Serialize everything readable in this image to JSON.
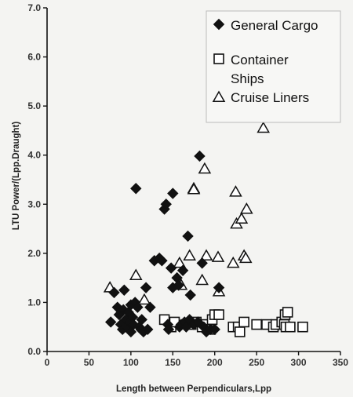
{
  "chart_data": {
    "type": "scatter",
    "xlabel": "Length between Perpendiculars,Lpp",
    "ylabel": "LTU Power/(Lpp.Draught)",
    "xlim": [
      0,
      350
    ],
    "ylim": [
      0,
      7
    ],
    "x_ticks": [
      "0",
      "50",
      "100",
      "150",
      "200",
      "250",
      "300",
      "350"
    ],
    "y_ticks": [
      "0.0",
      "1.0",
      "2.0",
      "3.0",
      "4.0",
      "5.0",
      "6.0",
      "7.0"
    ],
    "grid": false,
    "legend_position": "top-right",
    "legend": [
      {
        "label": "General Cargo",
        "marker": "diamond-filled"
      },
      {
        "label": "Container Ships",
        "label_lines": [
          "Container",
          "Ships"
        ],
        "marker": "square-open"
      },
      {
        "label": "Cruise Liners",
        "marker": "triangle-open"
      }
    ],
    "series": [
      {
        "name": "General Cargo",
        "marker": "diamond-filled",
        "points": [
          [
            76,
            0.6
          ],
          [
            80,
            1.2
          ],
          [
            84,
            0.9
          ],
          [
            86,
            0.75
          ],
          [
            88,
            0.55
          ],
          [
            90,
            0.45
          ],
          [
            91,
            0.85
          ],
          [
            92,
            1.25
          ],
          [
            94,
            0.65
          ],
          [
            95,
            0.5
          ],
          [
            97,
            0.8
          ],
          [
            98,
            0.6
          ],
          [
            100,
            0.95
          ],
          [
            100,
            0.4
          ],
          [
            102,
            0.7
          ],
          [
            103,
            0.55
          ],
          [
            105,
            1.0
          ],
          [
            106,
            3.32
          ],
          [
            108,
            0.9
          ],
          [
            110,
            0.5
          ],
          [
            112,
            0.45
          ],
          [
            113,
            0.65
          ],
          [
            115,
            0.4
          ],
          [
            118,
            1.3
          ],
          [
            120,
            0.45
          ],
          [
            123,
            0.9
          ],
          [
            128,
            1.85
          ],
          [
            134,
            1.9
          ],
          [
            137,
            1.85
          ],
          [
            140,
            2.9
          ],
          [
            142,
            3.0
          ],
          [
            144,
            0.55
          ],
          [
            145,
            0.45
          ],
          [
            148,
            1.7
          ],
          [
            150,
            3.22
          ],
          [
            150,
            1.3
          ],
          [
            155,
            1.5
          ],
          [
            157,
            1.35
          ],
          [
            158,
            0.5
          ],
          [
            160,
            0.55
          ],
          [
            162,
            1.65
          ],
          [
            164,
            0.6
          ],
          [
            166,
            0.5
          ],
          [
            168,
            2.35
          ],
          [
            170,
            0.65
          ],
          [
            171,
            1.15
          ],
          [
            175,
            0.55
          ],
          [
            180,
            0.6
          ],
          [
            182,
            3.98
          ],
          [
            185,
            1.8
          ],
          [
            187,
            0.5
          ],
          [
            190,
            0.4
          ],
          [
            195,
            0.45
          ],
          [
            200,
            0.45
          ],
          [
            205,
            1.3
          ]
        ]
      },
      {
        "name": "Container Ships",
        "marker": "square-open",
        "points": [
          [
            140,
            0.65
          ],
          [
            148,
            0.5
          ],
          [
            152,
            0.6
          ],
          [
            172,
            0.55
          ],
          [
            178,
            0.6
          ],
          [
            185,
            0.5
          ],
          [
            190,
            0.55
          ],
          [
            195,
            0.45
          ],
          [
            197,
            0.65
          ],
          [
            200,
            0.75
          ],
          [
            205,
            0.75
          ],
          [
            222,
            0.5
          ],
          [
            228,
            0.5
          ],
          [
            230,
            0.4
          ],
          [
            235,
            0.6
          ],
          [
            250,
            0.55
          ],
          [
            262,
            0.55
          ],
          [
            270,
            0.5
          ],
          [
            273,
            0.55
          ],
          [
            280,
            0.6
          ],
          [
            283,
            0.55
          ],
          [
            284,
            0.75
          ],
          [
            285,
            0.5
          ],
          [
            287,
            0.8
          ],
          [
            290,
            0.5
          ],
          [
            305,
            0.5
          ]
        ]
      },
      {
        "name": "Cruise Liners",
        "marker": "triangle-open",
        "points": [
          [
            75,
            1.3
          ],
          [
            106,
            1.55
          ],
          [
            116,
            1.05
          ],
          [
            158,
            1.8
          ],
          [
            160,
            1.35
          ],
          [
            170,
            1.95
          ],
          [
            175,
            3.32
          ],
          [
            175,
            3.3
          ],
          [
            185,
            1.45
          ],
          [
            188,
            3.72
          ],
          [
            190,
            1.95
          ],
          [
            204,
            1.92
          ],
          [
            205,
            1.22
          ],
          [
            222,
            1.8
          ],
          [
            225,
            3.25
          ],
          [
            226,
            2.6
          ],
          [
            232,
            2.7
          ],
          [
            235,
            1.95
          ],
          [
            237,
            1.9
          ],
          [
            238,
            2.9
          ],
          [
            258,
            4.55
          ]
        ]
      }
    ]
  }
}
